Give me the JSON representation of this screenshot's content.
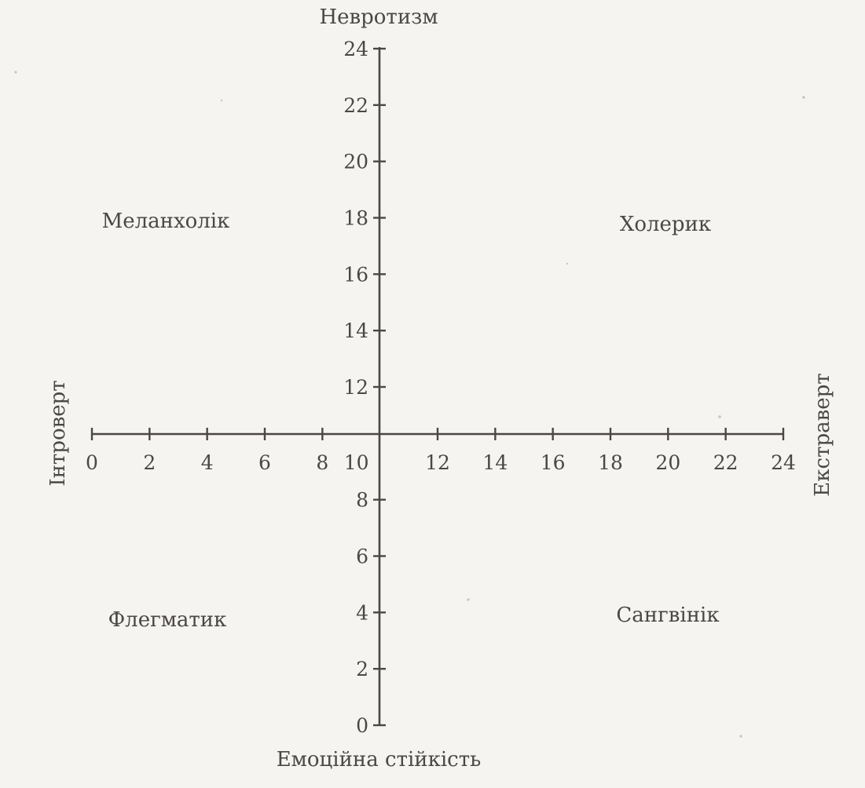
{
  "diagram": {
    "axis_titles": {
      "top": "Невротизм",
      "bottom": "Емоційна стійкість",
      "left": "Інтроверт",
      "right": "Екстраверт"
    },
    "x_axis": {
      "ticks": [
        0,
        2,
        4,
        6,
        8,
        10,
        12,
        14,
        16,
        18,
        20,
        22,
        24
      ],
      "labels": [
        "0",
        "2",
        "4",
        "6",
        "8",
        "10",
        "12",
        "14",
        "16",
        "18",
        "20",
        "22",
        "24"
      ],
      "range": [
        0,
        24
      ]
    },
    "y_axis": {
      "ticks": [
        0,
        2,
        4,
        6,
        8,
        12,
        14,
        16,
        18,
        20,
        22,
        24
      ],
      "labels": [
        "0",
        "2",
        "4",
        "6",
        "8",
        "12",
        "14",
        "16",
        "18",
        "20",
        "22",
        "24"
      ],
      "range": [
        0,
        24
      ],
      "crossing": 10
    },
    "quadrants": {
      "top_left": "Меланхолік",
      "top_right": "Холерик",
      "bottom_left": "Флегматик",
      "bottom_right": "Сангвінік"
    }
  }
}
